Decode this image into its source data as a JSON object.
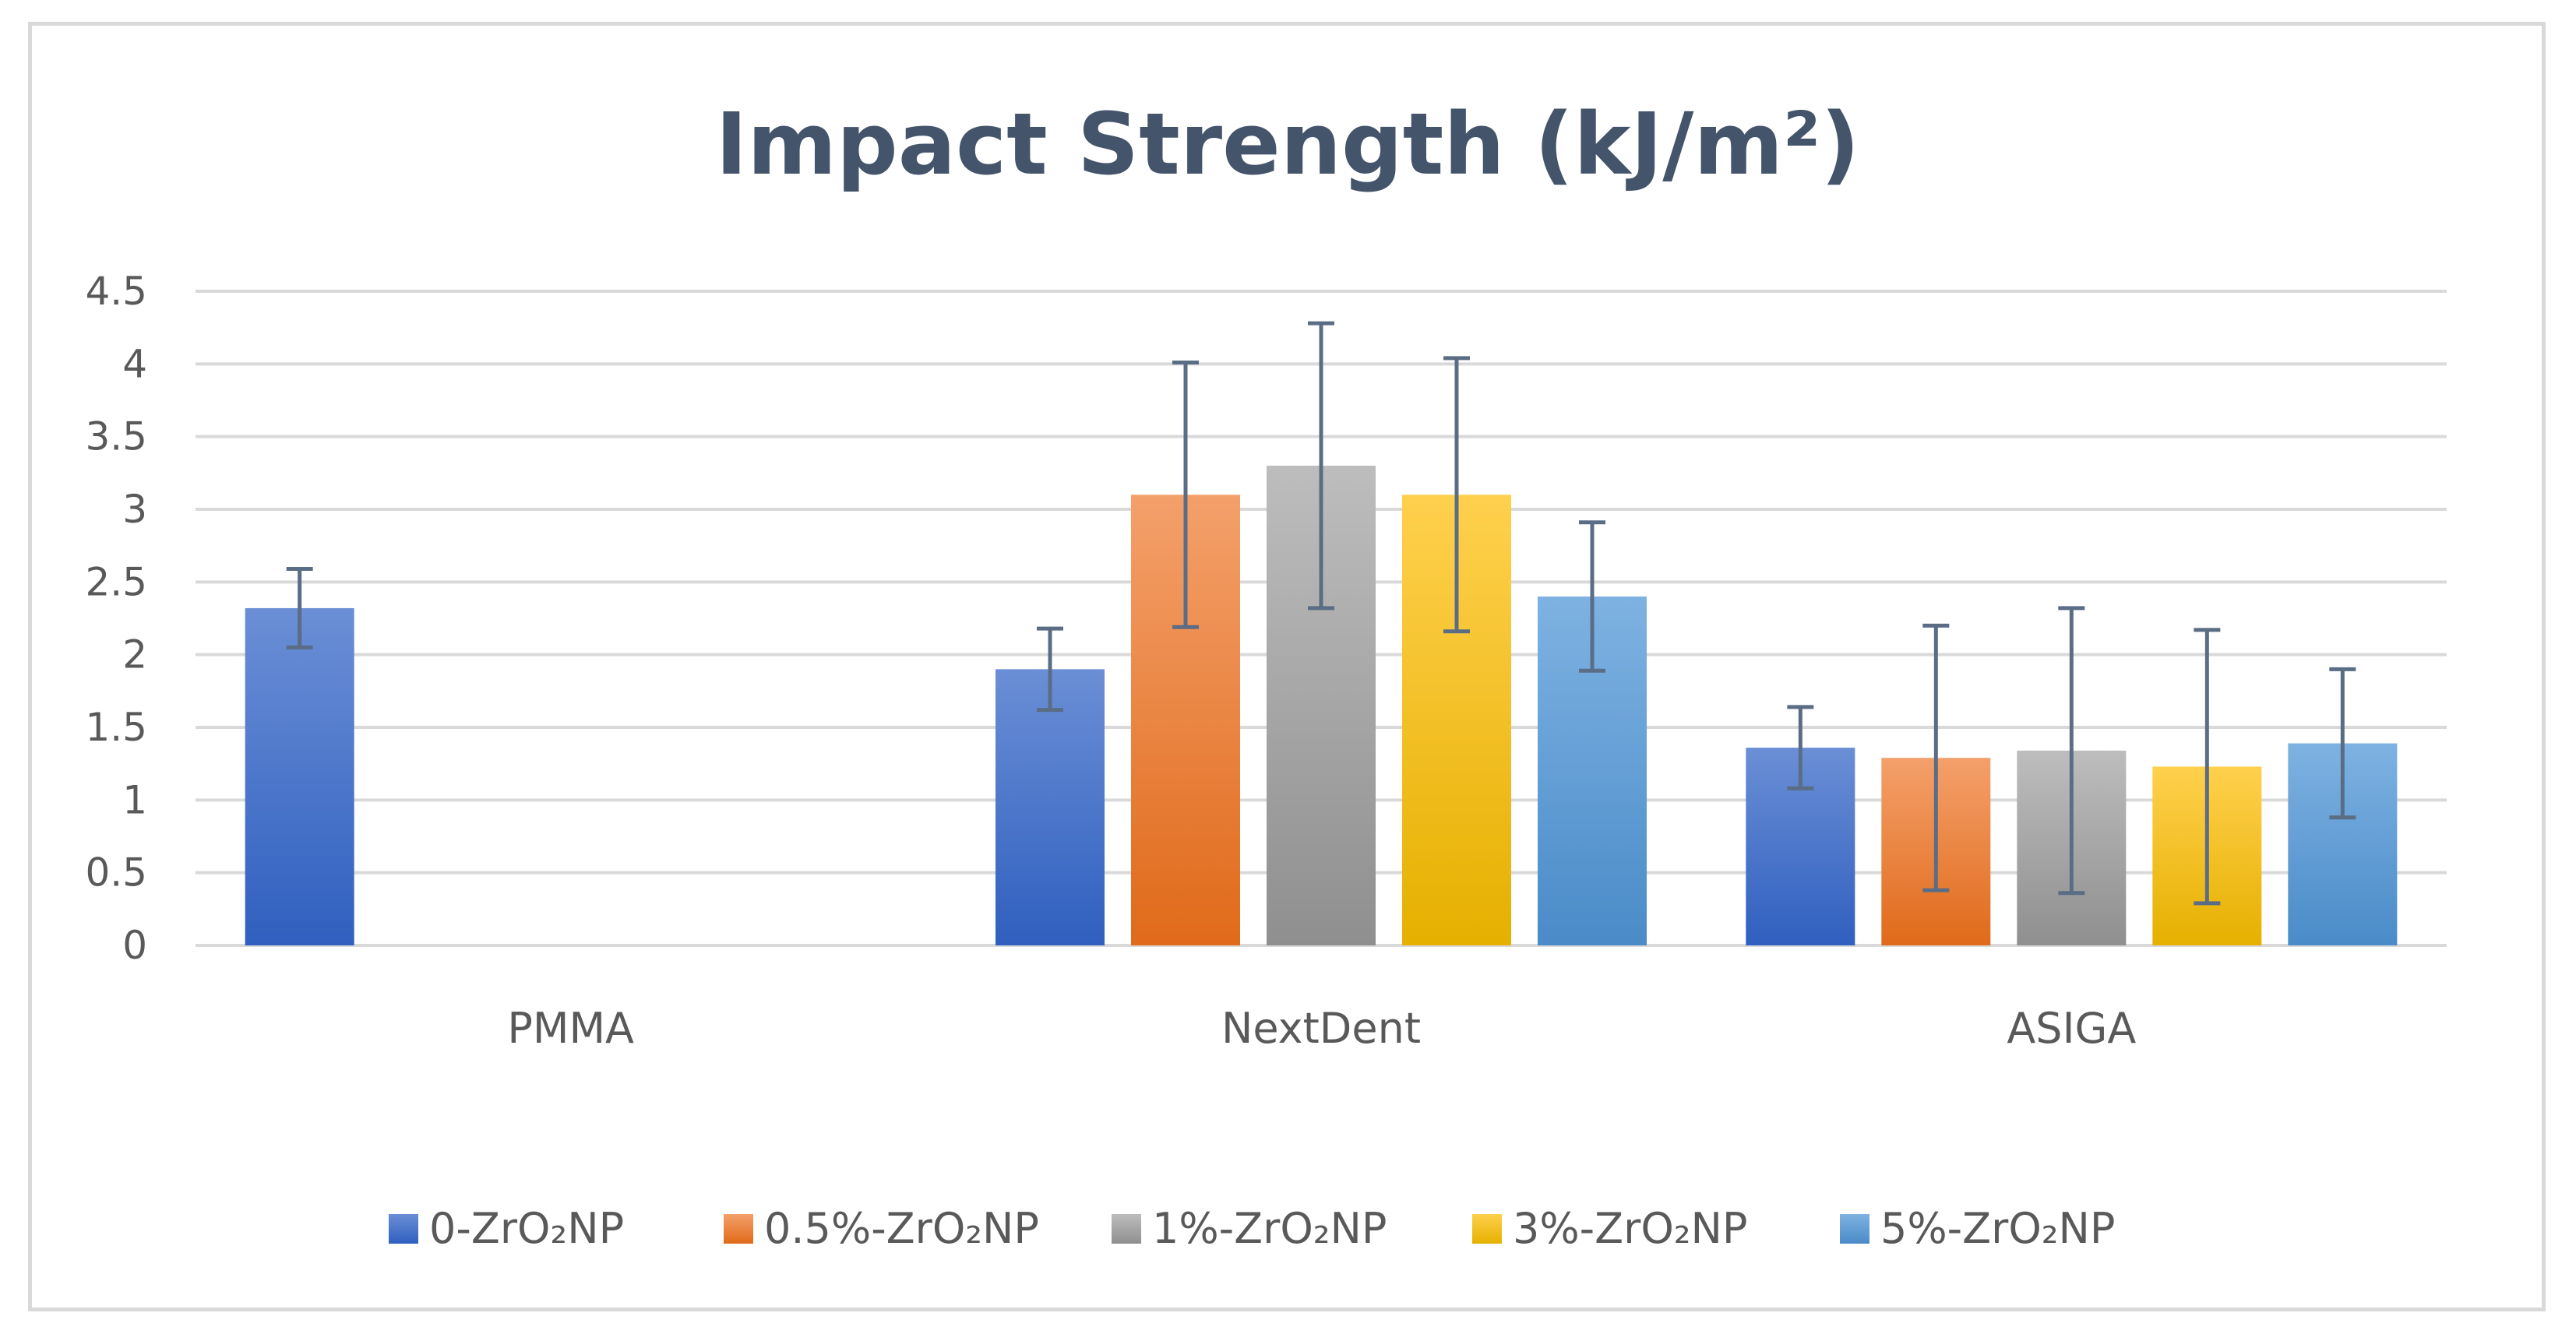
{
  "chart_data": {
    "type": "bar",
    "title": "Impact Strength (kJ/m²)",
    "xlabel": "",
    "ylabel": "",
    "ylim": [
      0,
      4.5
    ],
    "ytick_values": [
      0,
      0.5,
      1,
      1.5,
      2,
      2.5,
      3,
      3.5,
      4,
      4.5
    ],
    "ytick_labels": [
      "0",
      "0.5",
      "1",
      "1.5",
      "2",
      "2.5",
      "3",
      "3.5",
      "4",
      "4.5"
    ],
    "grid": true,
    "legend_position": "bottom",
    "categories": [
      "PMMA",
      "NextDent",
      "ASIGA"
    ],
    "series": [
      {
        "name": "0-ZrO₂NP",
        "color": "#4472c4",
        "color_light": "#6b8fd6",
        "color_dark": "#2f5fbf",
        "values": [
          2.32,
          1.9,
          1.36
        ],
        "errors": [
          0.27,
          0.28,
          0.28
        ]
      },
      {
        "name": "0.5%-ZrO₂NP",
        "color": "#ed7d31",
        "color_light": "#f4a06b",
        "color_dark": "#e06a1a",
        "values": [
          null,
          3.1,
          1.29
        ],
        "errors": [
          null,
          0.91,
          0.91
        ]
      },
      {
        "name": "1%-ZrO₂NP",
        "color": "#a5a5a5",
        "color_light": "#bdbdbd",
        "color_dark": "#8f8f8f",
        "values": [
          null,
          3.3,
          1.34
        ],
        "errors": [
          null,
          0.98,
          0.98
        ]
      },
      {
        "name": "3%-ZrO₂NP",
        "color": "#ffc000",
        "color_light": "#ffd04d",
        "color_dark": "#e6b000",
        "values": [
          null,
          3.1,
          1.23
        ],
        "errors": [
          null,
          0.94,
          0.94
        ]
      },
      {
        "name": "5%-ZrO₂NP",
        "color": "#5b9bd5",
        "color_light": "#7eb2e2",
        "color_dark": "#4a8bc8",
        "values": [
          null,
          2.4,
          1.39
        ],
        "errors": [
          null,
          0.51,
          0.51
        ]
      }
    ],
    "colors": {
      "gridline": "#d9d9d9",
      "error_bar": "#5a6d85",
      "axis_line": "#d9d9d9"
    }
  }
}
